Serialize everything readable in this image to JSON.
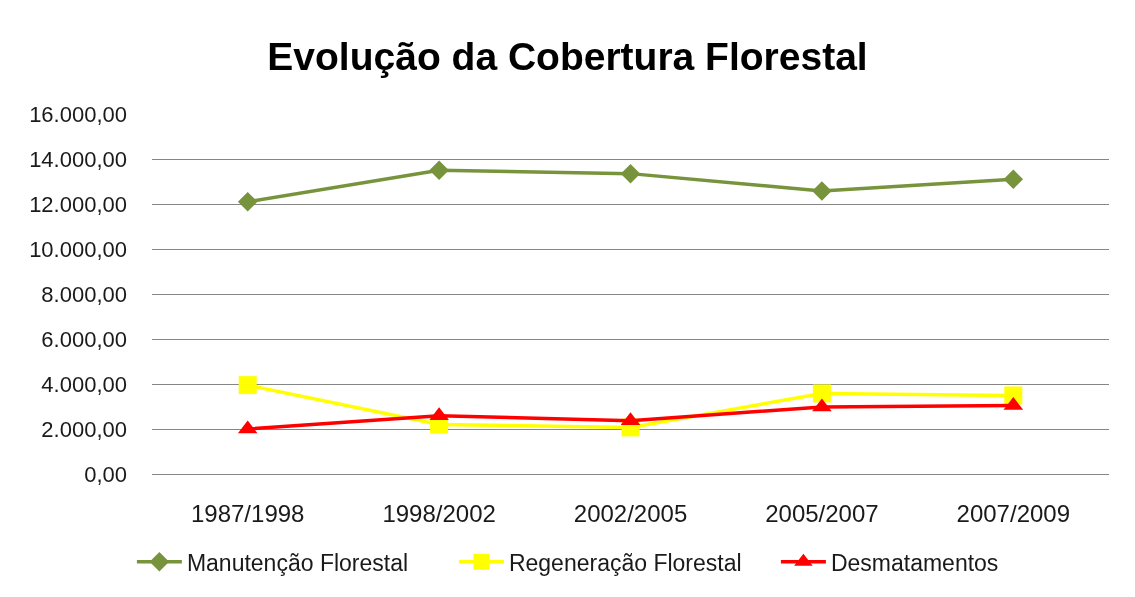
{
  "chart_data": {
    "type": "line",
    "title": "Evolução da Cobertura Florestal",
    "categories": [
      "1987/1998",
      "1998/2002",
      "2002/2005",
      "2005/2007",
      "2007/2009"
    ],
    "series": [
      {
        "name": "Manutenção Florestal",
        "color": "#77933c",
        "marker": "diamond",
        "values": [
          12100,
          13500,
          13350,
          12580,
          13100
        ]
      },
      {
        "name": "Regeneração Florestal",
        "color": "#ffff00",
        "marker": "square",
        "values": [
          3950,
          2200,
          2070,
          3580,
          3490
        ]
      },
      {
        "name": "Desmatamentos",
        "color": "#ff0000",
        "marker": "triangle",
        "values": [
          2000,
          2590,
          2370,
          2980,
          3050
        ]
      }
    ],
    "ylim": [
      0,
      16000
    ],
    "yticks": [
      {
        "value": 0,
        "label": "0,00"
      },
      {
        "value": 2000,
        "label": "2.000,00"
      },
      {
        "value": 4000,
        "label": "4.000,00"
      },
      {
        "value": 6000,
        "label": "6.000,00"
      },
      {
        "value": 8000,
        "label": "8.000,00"
      },
      {
        "value": 10000,
        "label": "10.000,00"
      },
      {
        "value": 12000,
        "label": "12.000,00"
      },
      {
        "value": 14000,
        "label": "14.000,00"
      },
      {
        "value": 16000,
        "label": "16.000,00"
      }
    ],
    "grid": "y",
    "legend": "bottom"
  }
}
